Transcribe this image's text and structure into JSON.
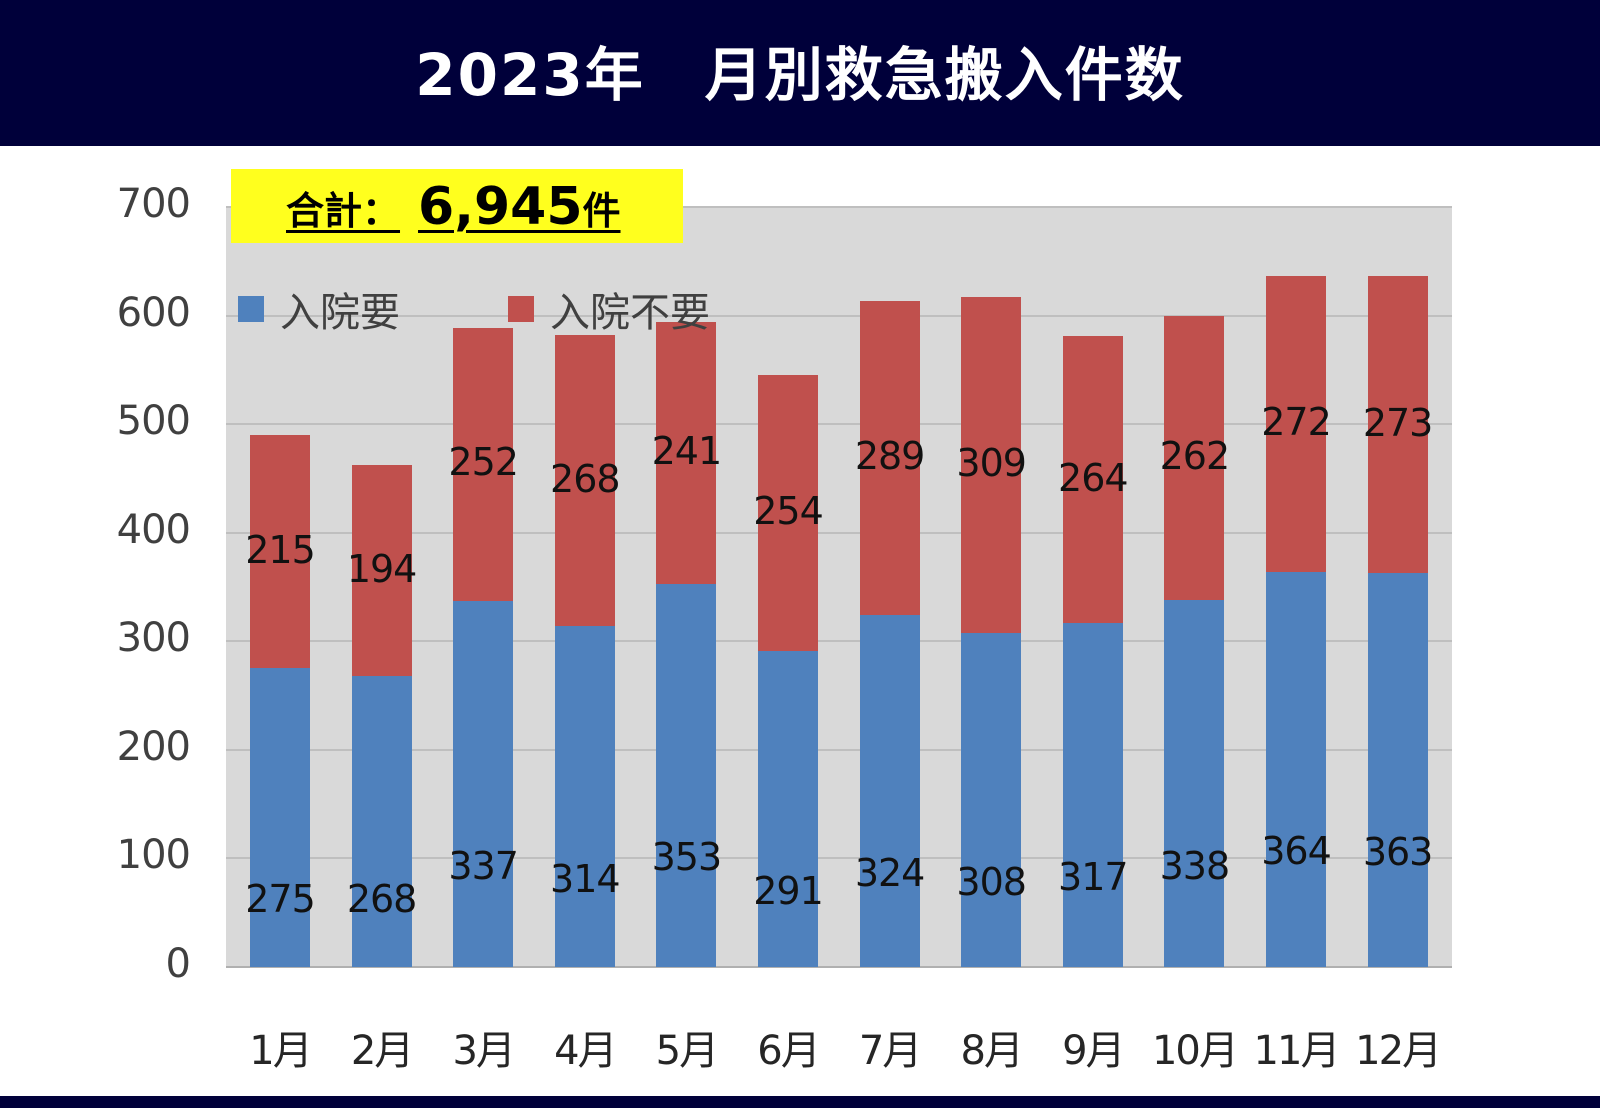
{
  "header": {
    "title": "2023年　月別救急搬入件数"
  },
  "total": {
    "label": "合計：",
    "value": "6,945",
    "unit": "件"
  },
  "legend": [
    {
      "label": "入院要",
      "color": "#4f81bd"
    },
    {
      "label": "入院不要",
      "color": "#c0504d"
    }
  ],
  "y_ticks": [
    "0",
    "100",
    "200",
    "300",
    "400",
    "500",
    "600",
    "700"
  ],
  "months": [
    "1月",
    "2月",
    "3月",
    "4月",
    "5月",
    "6月",
    "7月",
    "8月",
    "9月",
    "10月",
    "11月",
    "12月"
  ],
  "chart_data": {
    "type": "bar",
    "stacked": true,
    "title": "2023年　月別救急搬入件数",
    "annotation": "合計：6,945件",
    "categories": [
      "1月",
      "2月",
      "3月",
      "4月",
      "5月",
      "6月",
      "7月",
      "8月",
      "9月",
      "10月",
      "11月",
      "12月"
    ],
    "series": [
      {
        "name": "入院要",
        "color": "#4f81bd",
        "values": [
          275,
          268,
          337,
          314,
          353,
          291,
          324,
          308,
          317,
          338,
          364,
          363
        ]
      },
      {
        "name": "入院不要",
        "color": "#c0504d",
        "values": [
          215,
          194,
          252,
          268,
          241,
          254,
          289,
          309,
          264,
          262,
          272,
          273
        ]
      }
    ],
    "xlabel": "",
    "ylabel": "",
    "ylim": [
      0,
      700
    ],
    "yticks": [
      0,
      100,
      200,
      300,
      400,
      500,
      600,
      700
    ],
    "grid": true,
    "legend_position": "top-left inside"
  }
}
